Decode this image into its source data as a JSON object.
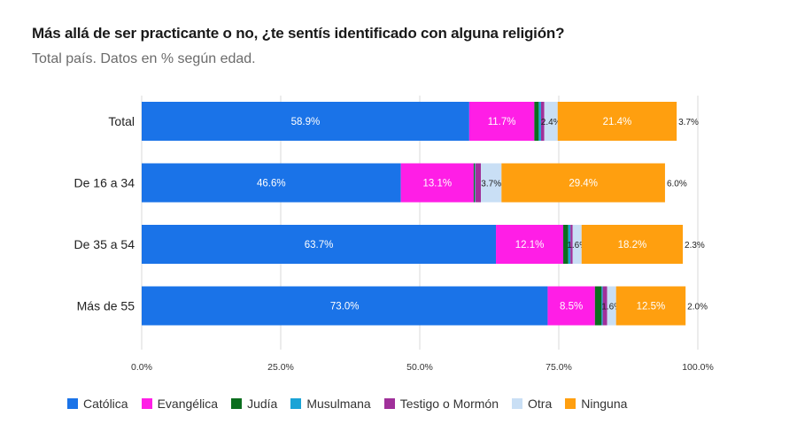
{
  "chart_data": {
    "type": "bar",
    "orientation": "horizontal",
    "stacked": true,
    "title": "Más allá de ser practicante o no, ¿te sentís identificado con alguna religión?",
    "subtitle": "Total país. Datos en % según edad.",
    "categories": [
      "Total",
      "De 16 a 34",
      "De 35 a 54",
      "Más de 55"
    ],
    "xlim": [
      0,
      100
    ],
    "x_ticks": [
      "0.0%",
      "25.0%",
      "50.0%",
      "75.0%",
      "100.0%"
    ],
    "x_tick_values": [
      0,
      25,
      50,
      75,
      100
    ],
    "grid": true,
    "legend_position": "bottom",
    "series": [
      {
        "name": "Católica",
        "color": "#1a73e8",
        "values": [
          58.9,
          46.6,
          63.7,
          73.0
        ],
        "labels": [
          "58.9%",
          "46.6%",
          "63.7%",
          "73.0%"
        ]
      },
      {
        "name": "Evangélica",
        "color": "#ff1ee6",
        "values": [
          11.7,
          13.1,
          12.1,
          8.5
        ],
        "labels": [
          "11.7%",
          "13.1%",
          "12.1%",
          "8.5%"
        ]
      },
      {
        "name": "Judía",
        "color": "#0b6e1e",
        "values": [
          0.8,
          0.2,
          0.9,
          1.2
        ],
        "labels": [
          "",
          "",
          "",
          ""
        ]
      },
      {
        "name": "Musulmana",
        "color": "#1aa3d6",
        "values": [
          0.4,
          0.1,
          0.4,
          0.2
        ],
        "labels": [
          "",
          "",
          "",
          ""
        ]
      },
      {
        "name": "Testigo o Mormón",
        "color": "#a0309a",
        "values": [
          0.6,
          1.0,
          0.4,
          0.8
        ],
        "labels": [
          "",
          "",
          "",
          ""
        ]
      },
      {
        "name": "Otra",
        "color": "#c9dff5",
        "values": [
          2.4,
          3.7,
          1.6,
          1.6
        ],
        "labels": [
          "2.4%",
          "3.7%",
          "1.6%",
          "1.6%"
        ]
      },
      {
        "name": "Ninguna",
        "color": "#ff9f0f",
        "values": [
          21.4,
          29.4,
          18.2,
          12.5
        ],
        "labels": [
          "21.4%",
          "29.4%",
          "18.2%",
          "12.5%"
        ]
      }
    ],
    "outside_labels": [
      "3.7%",
      "6.0%",
      "2.3%",
      "2.0%"
    ]
  },
  "colors": {
    "grid": "#d9d9d9",
    "axis_text": "#333333",
    "inbar_text": "#ffffff",
    "dark_text": "#222222"
  }
}
